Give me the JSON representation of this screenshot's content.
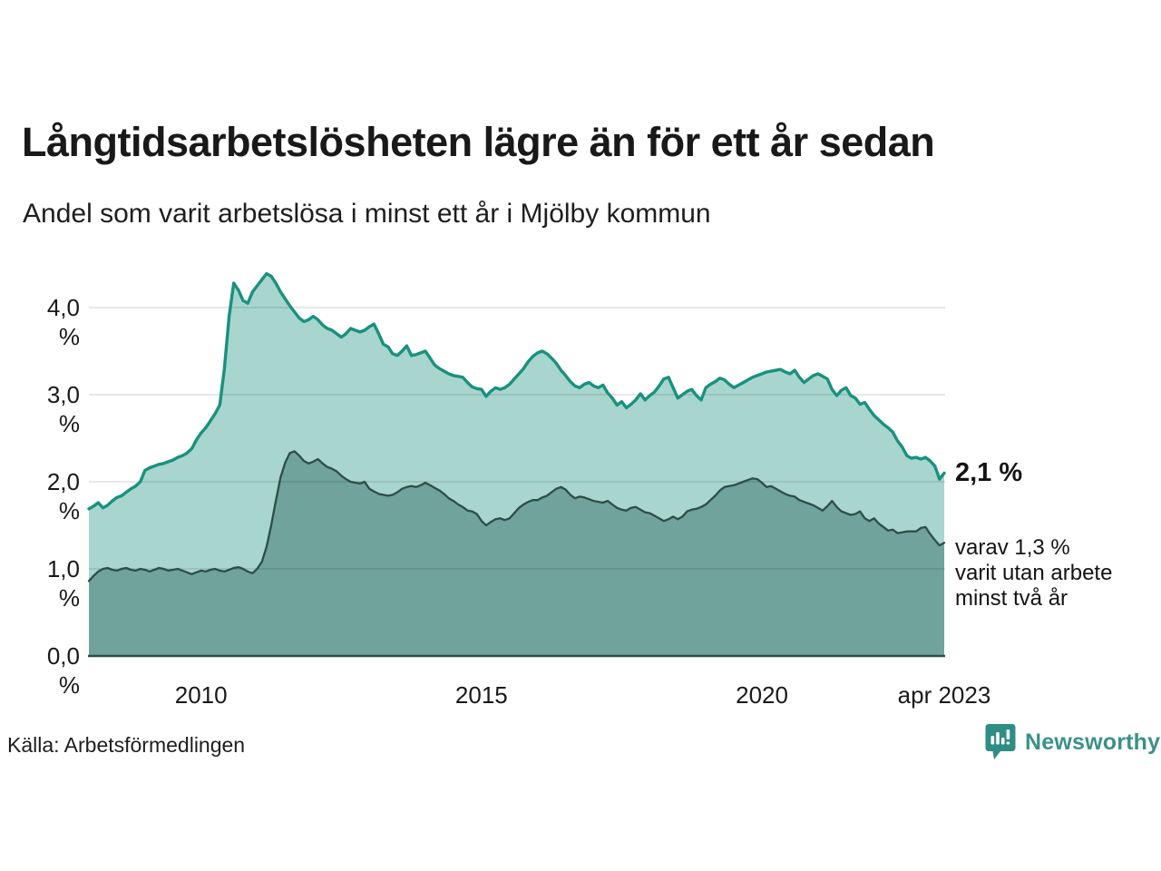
{
  "header": {
    "title": "Långtidsarbetslösheten lägre än för ett år sedan",
    "subtitle": "Andel som varit arbetslösa i minst ett år i Mjölby kommun"
  },
  "annotation": {
    "value_label": "2,1 %",
    "sub_line1": "varav 1,3 %",
    "sub_line2": "varit utan arbete",
    "sub_line3": "minst två år"
  },
  "source": "Källa: Arbetsförmedlingen",
  "brand": {
    "name": "Newsworthy",
    "logo_icon": "speech-bubble-bar-chart",
    "color": "#3a9189",
    "icon_color": "#2f8d84"
  },
  "colors": {
    "background": "#ffffff",
    "series1_line": "#19917f",
    "series1_fill": "#a8d5ce",
    "series2_line": "#2e4d48",
    "series2_fill": "#6fa39b",
    "gridline": "#d9d9d9",
    "baseline": "#2e4d48",
    "text": "#191919"
  },
  "chart_data": {
    "type": "area",
    "title": "Långtidsarbetslösheten lägre än för ett år sedan",
    "subtitle": "Andel som varit arbetslösa i minst ett år i Mjölby kommun",
    "unit": "%",
    "x_start_year": 2008.0,
    "x_end_year": 2023.25,
    "x_months_per_point": 1,
    "ylim": [
      0,
      4.5
    ],
    "grid": true,
    "legend_position": "none",
    "y_ticks": [
      {
        "label": "0,0 %",
        "value": 0
      },
      {
        "label": "1,0 %",
        "value": 1
      },
      {
        "label": "2,0 %",
        "value": 2
      },
      {
        "label": "3,0 %",
        "value": 3
      },
      {
        "label": "4,0 %",
        "value": 4
      }
    ],
    "x_ticks": [
      {
        "label": "2010",
        "t": 2010
      },
      {
        "label": "2015",
        "t": 2015
      },
      {
        "label": "2020",
        "t": 2020
      },
      {
        "label": "apr 2023",
        "t": 2023.25
      }
    ],
    "series": [
      {
        "name": "Arbetslösa minst ett år",
        "final_value_label": "2,1 %",
        "values": [
          1.69,
          1.72,
          1.76,
          1.7,
          1.73,
          1.78,
          1.82,
          1.84,
          1.88,
          1.92,
          1.95,
          2.0,
          2.13,
          2.16,
          2.18,
          2.2,
          2.21,
          2.23,
          2.25,
          2.28,
          2.3,
          2.33,
          2.38,
          2.48,
          2.56,
          2.62,
          2.7,
          2.78,
          2.88,
          3.3,
          3.9,
          4.28,
          4.2,
          4.08,
          4.05,
          4.18,
          4.25,
          4.32,
          4.39,
          4.36,
          4.28,
          4.18,
          4.1,
          4.02,
          3.95,
          3.88,
          3.84,
          3.86,
          3.9,
          3.86,
          3.8,
          3.76,
          3.74,
          3.7,
          3.66,
          3.7,
          3.76,
          3.74,
          3.72,
          3.74,
          3.78,
          3.81,
          3.7,
          3.58,
          3.55,
          3.47,
          3.45,
          3.5,
          3.56,
          3.45,
          3.46,
          3.48,
          3.5,
          3.42,
          3.34,
          3.3,
          3.27,
          3.24,
          3.22,
          3.21,
          3.2,
          3.14,
          3.09,
          3.07,
          3.06,
          2.98,
          3.04,
          3.08,
          3.06,
          3.08,
          3.12,
          3.18,
          3.24,
          3.3,
          3.38,
          3.44,
          3.48,
          3.5,
          3.47,
          3.42,
          3.36,
          3.28,
          3.22,
          3.15,
          3.1,
          3.08,
          3.12,
          3.14,
          3.1,
          3.08,
          3.11,
          3.02,
          2.96,
          2.88,
          2.92,
          2.85,
          2.89,
          2.94,
          3.01,
          2.94,
          2.99,
          3.03,
          3.1,
          3.18,
          3.2,
          3.08,
          2.96,
          3.0,
          3.04,
          3.06,
          2.99,
          2.94,
          3.08,
          3.12,
          3.15,
          3.19,
          3.17,
          3.12,
          3.08,
          3.11,
          3.14,
          3.17,
          3.2,
          3.22,
          3.24,
          3.26,
          3.27,
          3.28,
          3.29,
          3.26,
          3.24,
          3.28,
          3.2,
          3.14,
          3.18,
          3.22,
          3.24,
          3.21,
          3.18,
          3.06,
          2.99,
          3.05,
          3.08,
          2.99,
          2.96,
          2.89,
          2.91,
          2.83,
          2.76,
          2.71,
          2.66,
          2.62,
          2.57,
          2.47,
          2.4,
          2.3,
          2.27,
          2.28,
          2.26,
          2.28,
          2.24,
          2.18,
          2.03,
          2.1
        ]
      },
      {
        "name": "Arbetslösa minst två år",
        "final_value_label": "1,3 %",
        "values": [
          0.86,
          0.92,
          0.97,
          1.0,
          1.01,
          0.99,
          0.98,
          1.0,
          1.01,
          0.99,
          0.98,
          1.0,
          0.99,
          0.97,
          0.99,
          1.01,
          1.0,
          0.98,
          0.99,
          1.0,
          0.98,
          0.96,
          0.94,
          0.96,
          0.98,
          0.97,
          0.99,
          1.0,
          0.98,
          0.97,
          0.99,
          1.01,
          1.02,
          1.0,
          0.97,
          0.95,
          1.0,
          1.08,
          1.25,
          1.5,
          1.78,
          2.05,
          2.22,
          2.33,
          2.35,
          2.3,
          2.24,
          2.21,
          2.23,
          2.26,
          2.21,
          2.17,
          2.15,
          2.12,
          2.07,
          2.03,
          2.0,
          1.99,
          1.98,
          2.0,
          1.92,
          1.89,
          1.86,
          1.85,
          1.84,
          1.85,
          1.88,
          1.92,
          1.94,
          1.95,
          1.94,
          1.96,
          1.99,
          1.96,
          1.93,
          1.9,
          1.86,
          1.81,
          1.78,
          1.74,
          1.71,
          1.67,
          1.66,
          1.63,
          1.55,
          1.5,
          1.54,
          1.57,
          1.58,
          1.56,
          1.58,
          1.64,
          1.7,
          1.74,
          1.77,
          1.79,
          1.79,
          1.82,
          1.84,
          1.88,
          1.92,
          1.94,
          1.91,
          1.85,
          1.81,
          1.83,
          1.82,
          1.8,
          1.78,
          1.77,
          1.76,
          1.78,
          1.74,
          1.7,
          1.68,
          1.67,
          1.7,
          1.71,
          1.68,
          1.65,
          1.64,
          1.61,
          1.58,
          1.55,
          1.57,
          1.6,
          1.57,
          1.6,
          1.66,
          1.68,
          1.69,
          1.71,
          1.74,
          1.79,
          1.84,
          1.9,
          1.94,
          1.95,
          1.96,
          1.98,
          2.0,
          2.02,
          2.04,
          2.03,
          1.99,
          1.94,
          1.95,
          1.92,
          1.89,
          1.86,
          1.84,
          1.83,
          1.79,
          1.77,
          1.75,
          1.73,
          1.7,
          1.67,
          1.72,
          1.78,
          1.71,
          1.66,
          1.64,
          1.62,
          1.63,
          1.66,
          1.58,
          1.55,
          1.58,
          1.52,
          1.48,
          1.44,
          1.45,
          1.41,
          1.42,
          1.43,
          1.43,
          1.43,
          1.47,
          1.48,
          1.4,
          1.33,
          1.27,
          1.3
        ]
      }
    ]
  }
}
